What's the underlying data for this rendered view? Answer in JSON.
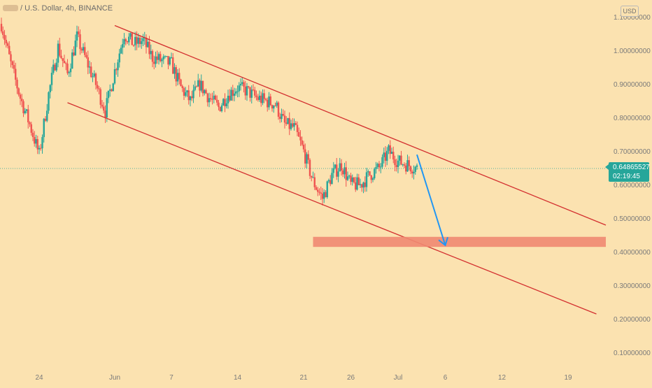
{
  "header": {
    "symbol_text": "/ U.S. Dollar, 4h, BINANCE",
    "currency_button": "USD"
  },
  "price_badge": {
    "price": "0.64865527",
    "countdown": "02:19:45"
  },
  "colors": {
    "background": "#fbe2b0",
    "up": "#26a69a",
    "down": "#ef5350",
    "channel": "#d32f2f",
    "target_zone": "#f08a72",
    "arrow": "#2196f3"
  },
  "chart_data": {
    "type": "candlestick",
    "title": "",
    "x_axis": {
      "type": "date",
      "ticks": [
        "24",
        "Jun",
        "7",
        "14",
        "21",
        "26",
        "Jul",
        "6",
        "12",
        "19"
      ],
      "range": [
        "2020-05-20",
        "2020-07-23"
      ]
    },
    "y_axis": {
      "ticks": [
        "0.10000000",
        "0.20000000",
        "0.30000000",
        "0.40000000",
        "0.50000000",
        "0.60000000",
        "0.70000000",
        "0.80000000",
        "0.90000000",
        "1.00000000",
        "1.10000000"
      ],
      "range": [
        0.05,
        1.14
      ]
    },
    "last_price": 0.64865527,
    "price_path": [
      [
        "2020-05-20",
        1.08
      ],
      [
        "2020-05-21",
        0.96
      ],
      [
        "2020-05-22",
        0.86
      ],
      [
        "2020-05-23",
        0.78
      ],
      [
        "2020-05-24",
        0.69
      ],
      [
        "2020-05-25",
        0.87
      ],
      [
        "2020-05-26",
        1.01
      ],
      [
        "2020-05-27",
        0.93
      ],
      [
        "2020-05-28",
        1.04
      ],
      [
        "2020-05-29",
        0.97
      ],
      [
        "2020-05-30",
        0.9
      ],
      [
        "2020-05-31",
        0.82
      ],
      [
        "2020-06-01",
        0.94
      ],
      [
        "2020-06-02",
        1.05
      ],
      [
        "2020-06-03",
        1.02
      ],
      [
        "2020-06-04",
        1.03
      ],
      [
        "2020-06-05",
        0.98
      ],
      [
        "2020-06-06",
        0.97
      ],
      [
        "2020-06-07",
        0.96
      ],
      [
        "2020-06-08",
        0.89
      ],
      [
        "2020-06-09",
        0.85
      ],
      [
        "2020-06-10",
        0.9
      ],
      [
        "2020-06-11",
        0.86
      ],
      [
        "2020-06-12",
        0.83
      ],
      [
        "2020-06-13",
        0.87
      ],
      [
        "2020-06-14",
        0.89
      ],
      [
        "2020-06-15",
        0.88
      ],
      [
        "2020-06-16",
        0.86
      ],
      [
        "2020-06-17",
        0.85
      ],
      [
        "2020-06-18",
        0.84
      ],
      [
        "2020-06-19",
        0.78
      ],
      [
        "2020-06-20",
        0.77
      ],
      [
        "2020-06-21",
        0.7
      ],
      [
        "2020-06-22",
        0.61
      ],
      [
        "2020-06-23",
        0.56
      ],
      [
        "2020-06-24",
        0.63
      ],
      [
        "2020-06-25",
        0.66
      ],
      [
        "2020-06-26",
        0.6
      ],
      [
        "2020-06-27",
        0.6
      ],
      [
        "2020-06-28",
        0.63
      ],
      [
        "2020-06-29",
        0.65
      ],
      [
        "2020-06-30",
        0.7
      ],
      [
        "2020-07-01",
        0.67
      ],
      [
        "2020-07-02",
        0.66
      ],
      [
        "2020-07-03",
        0.649
      ]
    ],
    "channel": {
      "upper_line": [
        [
          "2020-06-01",
          1.075
        ],
        [
          "2020-07-23",
          0.48
        ]
      ],
      "lower_line": [
        [
          "2020-05-27",
          0.845
        ],
        [
          "2020-07-22",
          0.215
        ]
      ]
    },
    "target_zone": {
      "y_range": [
        0.415,
        0.445
      ],
      "x_range": [
        "2020-06-22",
        "2020-07-23"
      ]
    },
    "projection_arrow": {
      "from": [
        "2020-07-03",
        0.69
      ],
      "to": [
        "2020-07-06",
        0.42
      ]
    },
    "grid": false
  }
}
